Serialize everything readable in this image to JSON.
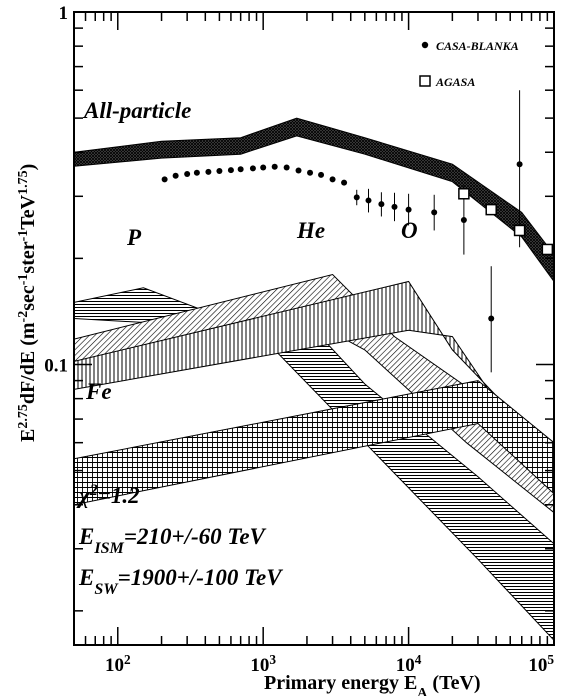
{
  "chart_data": {
    "type": "scatter",
    "title": "",
    "xlabel": {
      "main": "Primary energy E",
      "sub": "A",
      "unit": " (TeV)"
    },
    "ylabel": {
      "parts": [
        {
          "t": "E",
          "s": "n"
        },
        {
          "t": "2.75",
          "s": "sup"
        },
        {
          "t": "dF/dE (m",
          "s": "n"
        },
        {
          "t": "-2",
          "s": "sup"
        },
        {
          "t": "sec",
          "s": "n"
        },
        {
          "t": "-1",
          "s": "sup"
        },
        {
          "t": "ster",
          "s": "n"
        },
        {
          "t": "-1",
          "s": "sup"
        },
        {
          "t": "TeV",
          "s": "n"
        },
        {
          "t": "1.75",
          "s": "sup"
        },
        {
          "t": ")",
          "s": "n"
        }
      ]
    },
    "x_scale": "log",
    "y_scale": "log",
    "xlim": [
      50,
      100000
    ],
    "ylim": [
      0.016,
      1
    ],
    "grid": false,
    "legend_position": "top-right",
    "x_ticks": [
      {
        "value": 100,
        "base": "10",
        "exp": "2"
      },
      {
        "value": 1000,
        "base": "10",
        "exp": "3"
      },
      {
        "value": 10000,
        "base": "10",
        "exp": "4"
      },
      {
        "value": 100000,
        "base": "10",
        "exp": "5"
      }
    ],
    "y_ticks": [
      {
        "value": 0.1,
        "label": "0.1"
      },
      {
        "value": 1,
        "label": "1"
      }
    ],
    "series": [
      {
        "name": "CASA-BLANKA",
        "marker": "filled-circle",
        "points": [
          {
            "x": 210,
            "y": 0.335
          },
          {
            "x": 250,
            "y": 0.343
          },
          {
            "x": 300,
            "y": 0.347
          },
          {
            "x": 350,
            "y": 0.35
          },
          {
            "x": 420,
            "y": 0.352
          },
          {
            "x": 500,
            "y": 0.354
          },
          {
            "x": 600,
            "y": 0.356
          },
          {
            "x": 700,
            "y": 0.358
          },
          {
            "x": 850,
            "y": 0.36
          },
          {
            "x": 1000,
            "y": 0.362
          },
          {
            "x": 1200,
            "y": 0.364
          },
          {
            "x": 1450,
            "y": 0.362
          },
          {
            "x": 1750,
            "y": 0.355
          },
          {
            "x": 2100,
            "y": 0.35
          },
          {
            "x": 2500,
            "y": 0.345
          },
          {
            "x": 3000,
            "y": 0.335
          },
          {
            "x": 3600,
            "y": 0.328
          },
          {
            "x": 4400,
            "y": 0.298,
            "err": [
              0.283,
              0.313
            ]
          },
          {
            "x": 5300,
            "y": 0.292,
            "err": [
              0.27,
              0.315
            ]
          },
          {
            "x": 6500,
            "y": 0.285,
            "err": [
              0.263,
              0.308
            ]
          },
          {
            "x": 8000,
            "y": 0.28,
            "err": [
              0.255,
              0.307
            ]
          },
          {
            "x": 10000,
            "y": 0.275,
            "err": [
              0.248,
              0.305
            ]
          },
          {
            "x": 15000,
            "y": 0.27,
            "err": [
              0.24,
              0.303
            ]
          },
          {
            "x": 24000,
            "y": 0.257,
            "err": [
              0.205,
              0.322
            ]
          },
          {
            "x": 37000,
            "y": 0.135,
            "err": [
              0.095,
              0.19
            ]
          },
          {
            "x": 58000,
            "y": 0.37,
            "err": [
              0.215,
              0.6
            ]
          }
        ]
      },
      {
        "name": "AGASA",
        "marker": "open-square",
        "points": [
          {
            "x": 24000,
            "y": 0.305
          },
          {
            "x": 37000,
            "y": 0.275
          },
          {
            "x": 58000,
            "y": 0.24
          },
          {
            "x": 90000,
            "y": 0.212
          }
        ]
      }
    ],
    "bands": [
      {
        "name": "All-particle",
        "label": "All-particle",
        "fill": "dark-crosshatch",
        "upper": [
          [
            50,
            0.4
          ],
          [
            200,
            0.43
          ],
          [
            700,
            0.44
          ],
          [
            1700,
            0.5
          ],
          [
            5000,
            0.44
          ],
          [
            20000,
            0.37
          ],
          [
            60000,
            0.27
          ],
          [
            100000,
            0.205
          ]
        ],
        "lower": [
          [
            50,
            0.365
          ],
          [
            200,
            0.385
          ],
          [
            700,
            0.395
          ],
          [
            1700,
            0.445
          ],
          [
            5000,
            0.395
          ],
          [
            20000,
            0.33
          ],
          [
            60000,
            0.23
          ],
          [
            100000,
            0.172
          ]
        ]
      },
      {
        "name": "P",
        "label": "P",
        "fill": "horizontal-lines",
        "upper": [
          [
            50,
            0.15
          ],
          [
            150,
            0.165
          ],
          [
            700,
            0.13
          ],
          [
            1500,
            0.15
          ],
          [
            5000,
            0.088
          ],
          [
            30000,
            0.048
          ],
          [
            100000,
            0.031
          ]
        ],
        "lower": [
          [
            50,
            0.135
          ],
          [
            250,
            0.13
          ],
          [
            600,
            0.108
          ],
          [
            1200,
            0.11
          ],
          [
            5000,
            0.06
          ],
          [
            30000,
            0.028
          ],
          [
            100000,
            0.0165
          ]
        ]
      },
      {
        "name": "He",
        "label": "He",
        "fill": "diagonal-lines",
        "upper": [
          [
            50,
            0.118
          ],
          [
            3000,
            0.18
          ],
          [
            8000,
            0.12
          ],
          [
            30000,
            0.082
          ],
          [
            100000,
            0.055
          ]
        ],
        "lower": [
          [
            50,
            0.092
          ],
          [
            2000,
            0.135
          ],
          [
            5000,
            0.11
          ],
          [
            25000,
            0.06
          ],
          [
            100000,
            0.038
          ]
        ]
      },
      {
        "name": "O",
        "label": "O",
        "fill": "vertical-lines",
        "upper": [
          [
            50,
            0.102
          ],
          [
            10000,
            0.172
          ],
          [
            20000,
            0.11
          ],
          [
            100000,
            0.055
          ]
        ],
        "lower": [
          [
            50,
            0.085
          ],
          [
            10000,
            0.125
          ],
          [
            20000,
            0.12
          ],
          [
            100000,
            0.045
          ]
        ]
      },
      {
        "name": "Fe",
        "label": "Fe",
        "fill": "grid",
        "upper": [
          [
            50,
            0.054
          ],
          [
            30000,
            0.09
          ],
          [
            100000,
            0.06
          ]
        ],
        "lower": [
          [
            50,
            0.04
          ],
          [
            30000,
            0.068
          ],
          [
            100000,
            0.043
          ]
        ]
      }
    ],
    "annotations": [
      {
        "parts": [
          {
            "t": "χ",
            "s": "n"
          },
          {
            "t": "2",
            "s": "sup"
          },
          {
            "t": "=1.2",
            "s": "n"
          }
        ]
      },
      {
        "parts": [
          {
            "t": "E",
            "s": "n"
          },
          {
            "t": "ISM",
            "s": "sub"
          },
          {
            "t": "=210+/-60 TeV",
            "s": "n"
          }
        ]
      },
      {
        "parts": [
          {
            "t": "E",
            "s": "n"
          },
          {
            "t": "SW",
            "s": "sub"
          },
          {
            "t": "=1900+/-100 TeV",
            "s": "n"
          }
        ]
      }
    ]
  }
}
